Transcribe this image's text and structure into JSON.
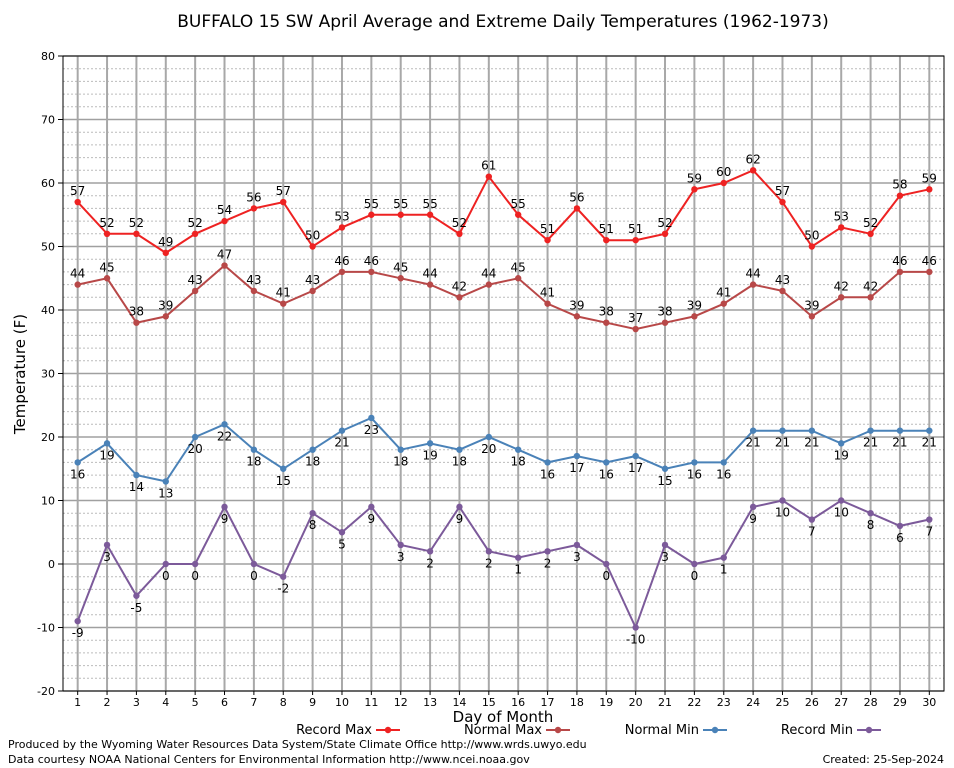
{
  "chart_data": {
    "type": "line",
    "title": "BUFFALO 15 SW April Average and Extreme Daily Temperatures (1962-1973)",
    "xlabel": "Day of Month",
    "ylabel": "Temperature (F)",
    "ylim": [
      -20,
      80
    ],
    "xlim": [
      0.5,
      30.5
    ],
    "y_ticks": [
      -20,
      -10,
      0,
      10,
      20,
      30,
      40,
      50,
      60,
      70,
      80
    ],
    "categories": [
      1,
      2,
      3,
      4,
      5,
      6,
      7,
      8,
      9,
      10,
      11,
      12,
      13,
      14,
      15,
      16,
      17,
      18,
      19,
      20,
      21,
      22,
      23,
      24,
      25,
      26,
      27,
      28,
      29,
      30
    ],
    "grid": true,
    "legend_position": "bottom",
    "series": [
      {
        "name": "Record Max",
        "color": "#ee2222",
        "label_side": "above",
        "values": [
          57,
          52,
          52,
          49,
          52,
          54,
          56,
          57,
          50,
          53,
          55,
          55,
          55,
          52,
          61,
          55,
          51,
          56,
          51,
          51,
          52,
          59,
          60,
          62,
          57,
          50,
          53,
          52,
          58,
          59
        ]
      },
      {
        "name": "Normal Max",
        "color": "#b84848",
        "label_side": "above",
        "values": [
          44,
          45,
          38,
          39,
          43,
          47,
          43,
          41,
          43,
          46,
          46,
          45,
          44,
          42,
          44,
          45,
          41,
          39,
          38,
          37,
          38,
          39,
          41,
          44,
          43,
          39,
          42,
          42,
          46,
          46
        ]
      },
      {
        "name": "Normal Min",
        "color": "#4a82b8",
        "label_side": "below",
        "values": [
          16,
          19,
          14,
          13,
          20,
          22,
          18,
          15,
          18,
          21,
          23,
          18,
          19,
          18,
          20,
          18,
          16,
          17,
          16,
          17,
          15,
          16,
          16,
          21,
          21,
          21,
          19,
          21,
          21,
          21
        ]
      },
      {
        "name": "Record Min",
        "color": "#7c5a9a",
        "label_side": "below",
        "values": [
          -9,
          3,
          -5,
          0,
          0,
          9,
          0,
          -2,
          8,
          5,
          9,
          3,
          2,
          9,
          2,
          1,
          2,
          3,
          0,
          -10,
          3,
          0,
          1,
          9,
          10,
          7,
          10,
          8,
          6,
          7
        ]
      }
    ]
  },
  "footer": {
    "line1": "Produced by the Wyoming Water Resources Data System/State Climate Office http://www.wrds.uwyo.edu",
    "line2": "Data courtesy NOAA National Centers for Environmental Information http://www.ncei.noaa.gov",
    "created": "Created: 25-Sep-2024"
  }
}
